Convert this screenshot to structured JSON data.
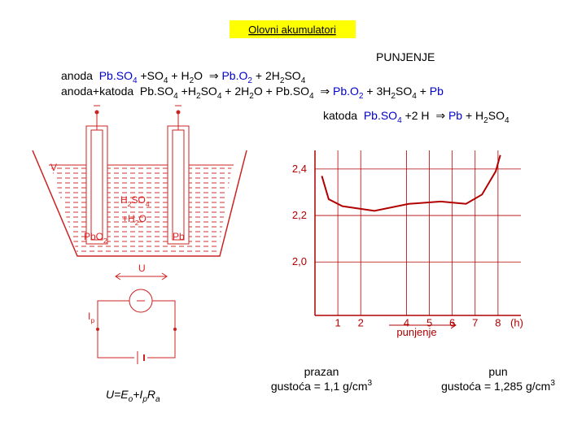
{
  "title": "Olovni akumulatori",
  "subtitle": "PUNJENJE",
  "equations": [
    [
      {
        "text": "anoda  "
      },
      {
        "text": "Pb.SO",
        "color": "#0000cc"
      },
      {
        "text": "4",
        "sub": true,
        "color": "#0000cc"
      },
      {
        "text": " +SO"
      },
      {
        "text": "4",
        "sub": true
      },
      {
        "text": " + H"
      },
      {
        "text": "2",
        "sub": true
      },
      {
        "text": "O  ⇒ "
      },
      {
        "text": "Pb.O",
        "color": "#0000cc"
      },
      {
        "text": "2",
        "sub": true,
        "color": "#0000cc"
      },
      {
        "text": " + 2H"
      },
      {
        "text": "2",
        "sub": true
      },
      {
        "text": "SO"
      },
      {
        "text": "4",
        "sub": true
      }
    ],
    [
      {
        "text": "anoda+katoda  Pb.SO"
      },
      {
        "text": "4",
        "sub": true
      },
      {
        "text": " +H"
      },
      {
        "text": "2",
        "sub": true
      },
      {
        "text": "SO"
      },
      {
        "text": "4",
        "sub": true
      },
      {
        "text": " + 2H"
      },
      {
        "text": "2",
        "sub": true
      },
      {
        "text": "O + Pb.SO"
      },
      {
        "text": "4",
        "sub": true
      },
      {
        "text": "  ⇒ "
      },
      {
        "text": "Pb.O",
        "color": "#0000cc"
      },
      {
        "text": "2",
        "sub": true,
        "color": "#0000cc"
      },
      {
        "text": " + 3H"
      },
      {
        "text": "2",
        "sub": true
      },
      {
        "text": "SO"
      },
      {
        "text": "4",
        "sub": true
      },
      {
        "text": " + "
      },
      {
        "text": "Pb",
        "color": "#0000cc"
      }
    ],
    [
      {
        "text": "katoda  "
      },
      {
        "text": "Pb.SO",
        "color": "#0000cc"
      },
      {
        "text": "4",
        "sub": true,
        "color": "#0000cc"
      },
      {
        "text": " +2 H  ⇒ "
      },
      {
        "text": "Pb",
        "color": "#0000cc"
      },
      {
        "text": " + H"
      },
      {
        "text": "2",
        "sub": true
      },
      {
        "text": "SO"
      },
      {
        "text": "4",
        "sub": true
      }
    ]
  ],
  "diagram": {
    "electrolyte": [
      {
        "text": "H"
      },
      {
        "text": "2",
        "sub": true
      },
      {
        "text": "SO"
      },
      {
        "text": "4",
        "sub": true
      }
    ],
    "water": [
      {
        "text": "+H"
      },
      {
        "text": "2",
        "sub": true
      },
      {
        "text": "O"
      }
    ],
    "anode": [
      {
        "text": "PbO"
      },
      {
        "text": "2",
        "sub": true
      }
    ],
    "cathode": [
      {
        "text": "Pb"
      }
    ],
    "vessel": "V",
    "voltage": "U",
    "current": [
      {
        "text": "I"
      },
      {
        "text": "p",
        "sub": true
      }
    ]
  },
  "formula": [
    {
      "text": "U=E",
      "italic": true
    },
    {
      "text": "o",
      "sub": true,
      "italic": true
    },
    {
      "text": "+I",
      "italic": true
    },
    {
      "text": "p",
      "sub": true,
      "italic": true
    },
    {
      "text": "R",
      "italic": true
    },
    {
      "text": "a",
      "sub": true,
      "italic": true
    }
  ],
  "chart": {
    "type": "line",
    "x": [
      0.3,
      0.6,
      1.2,
      2.6,
      4.1,
      5.5,
      6.6,
      7.3,
      7.9,
      8.1
    ],
    "values": [
      2.37,
      2.27,
      2.24,
      2.22,
      2.25,
      2.26,
      2.25,
      2.29,
      2.39,
      2.46
    ],
    "xlim": [
      0,
      9
    ],
    "ylim": [
      1.77,
      2.48
    ],
    "xticks": [
      1,
      2,
      4,
      5,
      6,
      7,
      8
    ],
    "yticks": [
      {
        "value": 2.0,
        "label": "2,0"
      },
      {
        "value": 2.2,
        "label": "2,2"
      },
      {
        "value": 2.4,
        "label": "2,4"
      }
    ],
    "x_unit": "(h)",
    "xlabel": "punjenje",
    "color": "#b00000",
    "grid": true
  },
  "states": [
    {
      "name": "prazan",
      "density": [
        {
          "text": "gustoća = 1,1 g/cm"
        },
        {
          "text": "3",
          "sup": true
        }
      ]
    },
    {
      "name": "pun",
      "density": [
        {
          "text": "gustoća = 1,285 g/cm"
        },
        {
          "text": "3",
          "sup": true
        }
      ]
    }
  ]
}
